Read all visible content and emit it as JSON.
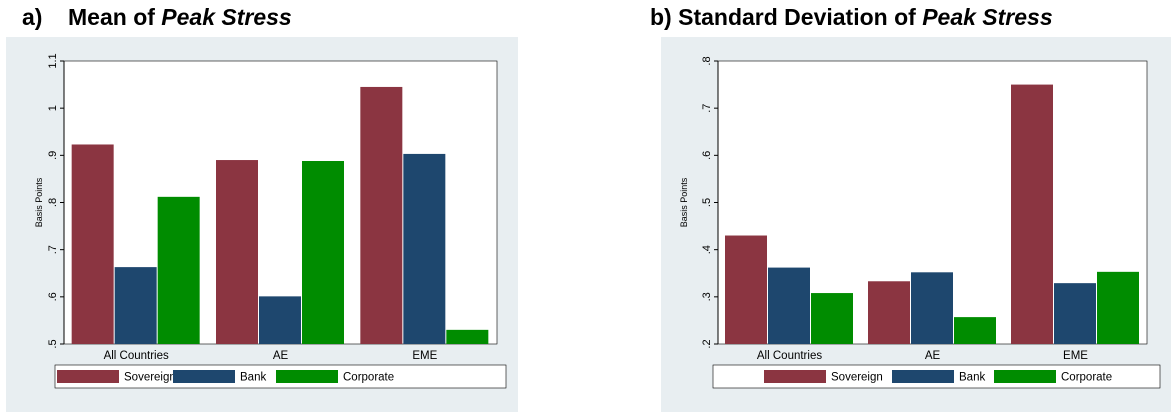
{
  "panels": [
    {
      "letter": "a)",
      "title_prefix": "Mean of ",
      "title_italic": "Peak Stress"
    },
    {
      "letter": "b)",
      "title_prefix": "Standard Deviation of ",
      "title_italic": "Peak Stress"
    }
  ],
  "colors": {
    "Sovereign": "#8b3541",
    "Bank": "#1e476e",
    "Corporate": "#008c00",
    "frame_bg": "#e8eef1"
  },
  "chart_data": [
    {
      "type": "bar",
      "title": "Mean of Peak Stress",
      "ylabel": "Basis Points",
      "categories": [
        "All Countries",
        "AE",
        "EME"
      ],
      "ylim": [
        0.5,
        1.1
      ],
      "yticks": [
        0.5,
        0.6,
        0.7,
        0.8,
        0.9,
        1.0,
        1.1
      ],
      "ytick_labels": [
        ".5",
        ".6",
        ".7",
        ".8",
        ".9",
        "1",
        "1.1"
      ],
      "series": [
        {
          "name": "Sovereign",
          "values": [
            0.923,
            0.89,
            1.045
          ]
        },
        {
          "name": "Bank",
          "values": [
            0.663,
            0.601,
            0.903
          ]
        },
        {
          "name": "Corporate",
          "values": [
            0.812,
            0.888,
            0.53
          ]
        }
      ],
      "grid": false,
      "legend": "bottom"
    },
    {
      "type": "bar",
      "title": "Standard Deviation of Peak Stress",
      "ylabel": "Basis Points",
      "categories": [
        "All Countries",
        "AE",
        "EME"
      ],
      "ylim": [
        0.2,
        0.8
      ],
      "yticks": [
        0.2,
        0.3,
        0.4,
        0.5,
        0.6,
        0.7,
        0.8
      ],
      "ytick_labels": [
        ".2",
        ".3",
        ".4",
        ".5",
        ".6",
        ".7",
        ".8"
      ],
      "series": [
        {
          "name": "Sovereign",
          "values": [
            0.43,
            0.333,
            0.75
          ]
        },
        {
          "name": "Bank",
          "values": [
            0.362,
            0.352,
            0.329
          ]
        },
        {
          "name": "Corporate",
          "values": [
            0.308,
            0.257,
            0.353
          ]
        }
      ],
      "grid": false,
      "legend": "bottom"
    }
  ]
}
